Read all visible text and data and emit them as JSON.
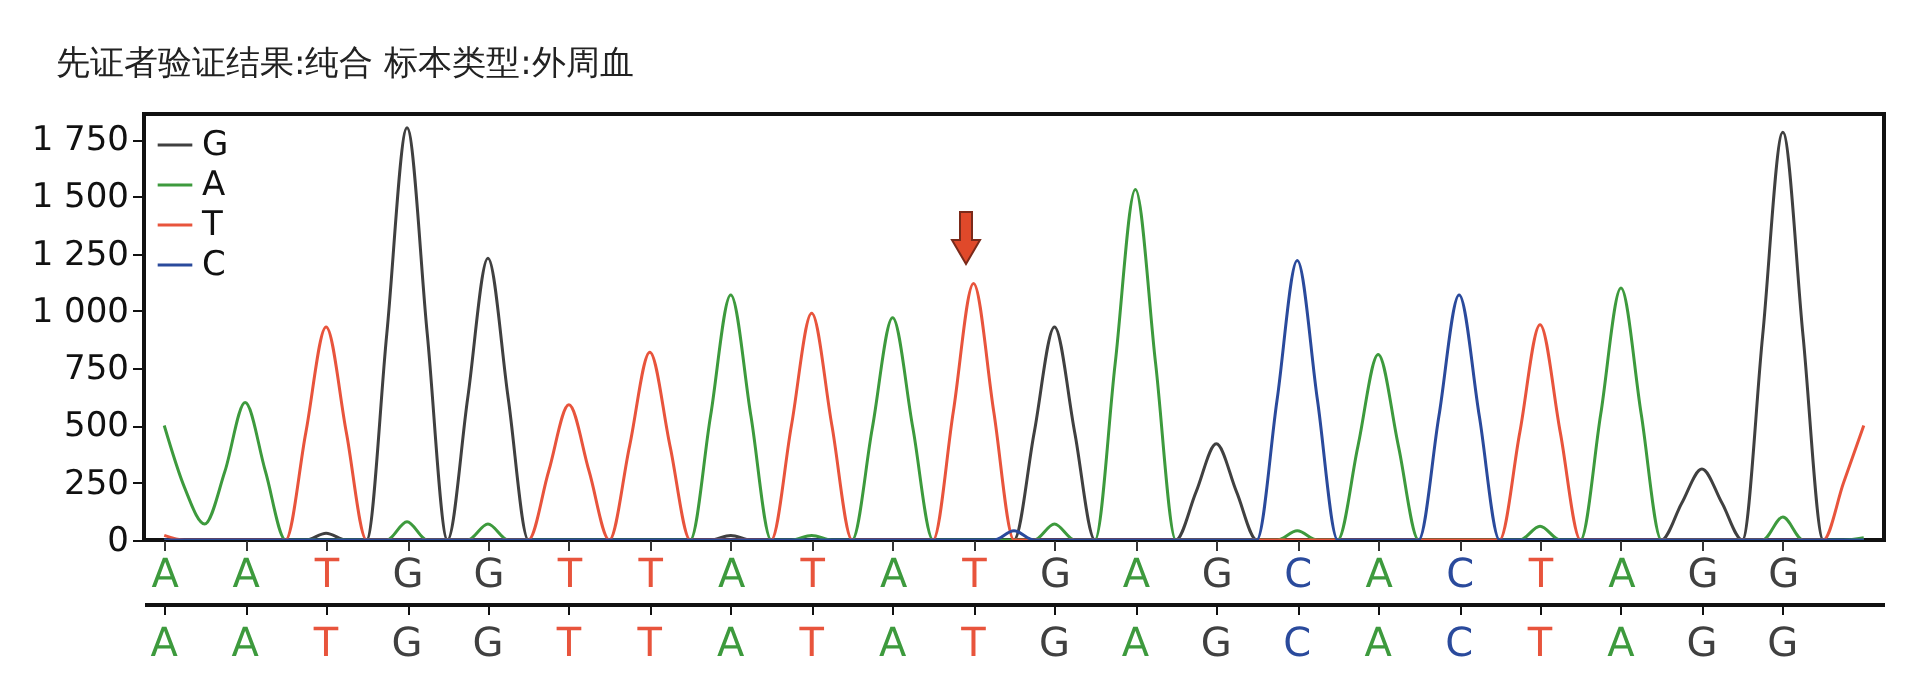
{
  "chart_data": {
    "type": "line",
    "title": "先证者验证结果:纯合 标本类型:外周血",
    "categories": [
      "A",
      null,
      null,
      null,
      "A",
      null,
      null,
      null,
      "T",
      null,
      null,
      null,
      "G",
      null,
      null,
      null,
      "G",
      null,
      null,
      null,
      "T",
      null,
      null,
      null,
      "T",
      null,
      null,
      null,
      "A",
      null,
      null,
      null,
      "T",
      null,
      null,
      null,
      "A",
      null,
      null,
      null,
      "T",
      null,
      null,
      null,
      "G",
      null,
      null,
      null,
      "A",
      null,
      null,
      null,
      "G",
      null,
      null,
      null,
      "C",
      null,
      null,
      null,
      "A",
      null,
      null,
      null,
      "C",
      null,
      null,
      null,
      "T",
      null,
      null,
      null,
      "A",
      null,
      null,
      null,
      "G",
      null,
      null,
      null,
      "G",
      null,
      null,
      null,
      null
    ],
    "annotations": [
      "A",
      "A",
      "T",
      "G",
      "G",
      "T",
      "T",
      "A",
      "T",
      "A",
      "T",
      "G",
      "A",
      "G",
      "C",
      "A",
      "C",
      "T",
      "A",
      "G",
      "G"
    ],
    "ylim": [
      0,
      1860
    ],
    "yticks": [
      0,
      250,
      500,
      750,
      {
        "value": 1000,
        "label": "1 000"
      },
      {
        "value": 1250,
        "label": "1 250"
      },
      {
        "value": 1500,
        "label": "1 500"
      },
      {
        "value": 1750,
        "label": "1 750"
      }
    ],
    "grid": false,
    "legend": "top left",
    "series": [
      {
        "name": "G",
        "color": "#404040",
        "values": [
          0,
          0,
          0,
          0,
          0,
          0,
          0,
          0,
          30,
          0,
          0,
          900,
          1800,
          900,
          0,
          620,
          1230,
          620,
          0,
          0,
          0,
          0,
          0,
          0,
          0,
          0,
          0,
          0,
          20,
          0,
          0,
          0,
          0,
          0,
          0,
          0,
          0,
          0,
          0,
          0,
          0,
          0,
          0,
          470,
          930,
          470,
          0,
          0,
          0,
          0,
          0,
          210,
          420,
          210,
          0,
          0,
          0,
          0,
          0,
          0,
          0,
          0,
          0,
          0,
          0,
          0,
          0,
          0,
          0,
          0,
          0,
          0,
          0,
          0,
          0,
          160,
          310,
          160,
          0,
          890,
          1780,
          890,
          0,
          0,
          0
        ]
      },
      {
        "name": "A",
        "color": "#3d9a3d",
        "values": [
          500,
          230,
          70,
          300,
          600,
          300,
          0,
          0,
          0,
          0,
          0,
          0,
          80,
          0,
          0,
          0,
          70,
          0,
          0,
          0,
          0,
          0,
          0,
          0,
          0,
          0,
          0,
          540,
          1070,
          540,
          0,
          0,
          20,
          0,
          0,
          490,
          970,
          490,
          0,
          0,
          0,
          0,
          0,
          0,
          70,
          0,
          0,
          770,
          1530,
          770,
          0,
          0,
          0,
          0,
          0,
          0,
          40,
          0,
          0,
          410,
          810,
          410,
          0,
          0,
          0,
          0,
          0,
          0,
          60,
          0,
          0,
          550,
          1100,
          550,
          0,
          0,
          0,
          0,
          0,
          0,
          100,
          0,
          0,
          0,
          10
        ]
      },
      {
        "name": "T",
        "color": "#e8543c",
        "values": [
          20,
          0,
          0,
          0,
          0,
          0,
          0,
          470,
          930,
          470,
          0,
          0,
          0,
          0,
          0,
          0,
          0,
          0,
          0,
          300,
          590,
          300,
          0,
          410,
          820,
          410,
          0,
          0,
          0,
          0,
          0,
          500,
          990,
          500,
          0,
          0,
          0,
          0,
          0,
          560,
          1120,
          560,
          0,
          0,
          0,
          0,
          0,
          0,
          0,
          0,
          0,
          0,
          0,
          0,
          0,
          0,
          0,
          0,
          0,
          0,
          0,
          0,
          0,
          0,
          0,
          0,
          0,
          470,
          940,
          470,
          0,
          0,
          0,
          0,
          0,
          0,
          0,
          0,
          0,
          0,
          0,
          0,
          0,
          250,
          500
        ]
      },
      {
        "name": "C",
        "color": "#2a4a9c",
        "values": [
          0,
          0,
          0,
          0,
          0,
          0,
          0,
          0,
          0,
          0,
          0,
          0,
          0,
          0,
          0,
          0,
          0,
          0,
          0,
          0,
          0,
          0,
          0,
          0,
          0,
          0,
          0,
          0,
          0,
          0,
          0,
          0,
          0,
          0,
          0,
          0,
          0,
          0,
          0,
          0,
          0,
          0,
          40,
          0,
          0,
          0,
          0,
          0,
          0,
          0,
          0,
          0,
          0,
          0,
          0,
          610,
          1220,
          610,
          0,
          0,
          0,
          0,
          0,
          540,
          1070,
          540,
          0,
          0,
          0,
          0,
          0,
          0,
          0,
          0,
          0,
          0,
          0,
          0,
          0,
          0,
          0,
          0,
          0,
          0,
          0
        ]
      }
    ]
  }
}
